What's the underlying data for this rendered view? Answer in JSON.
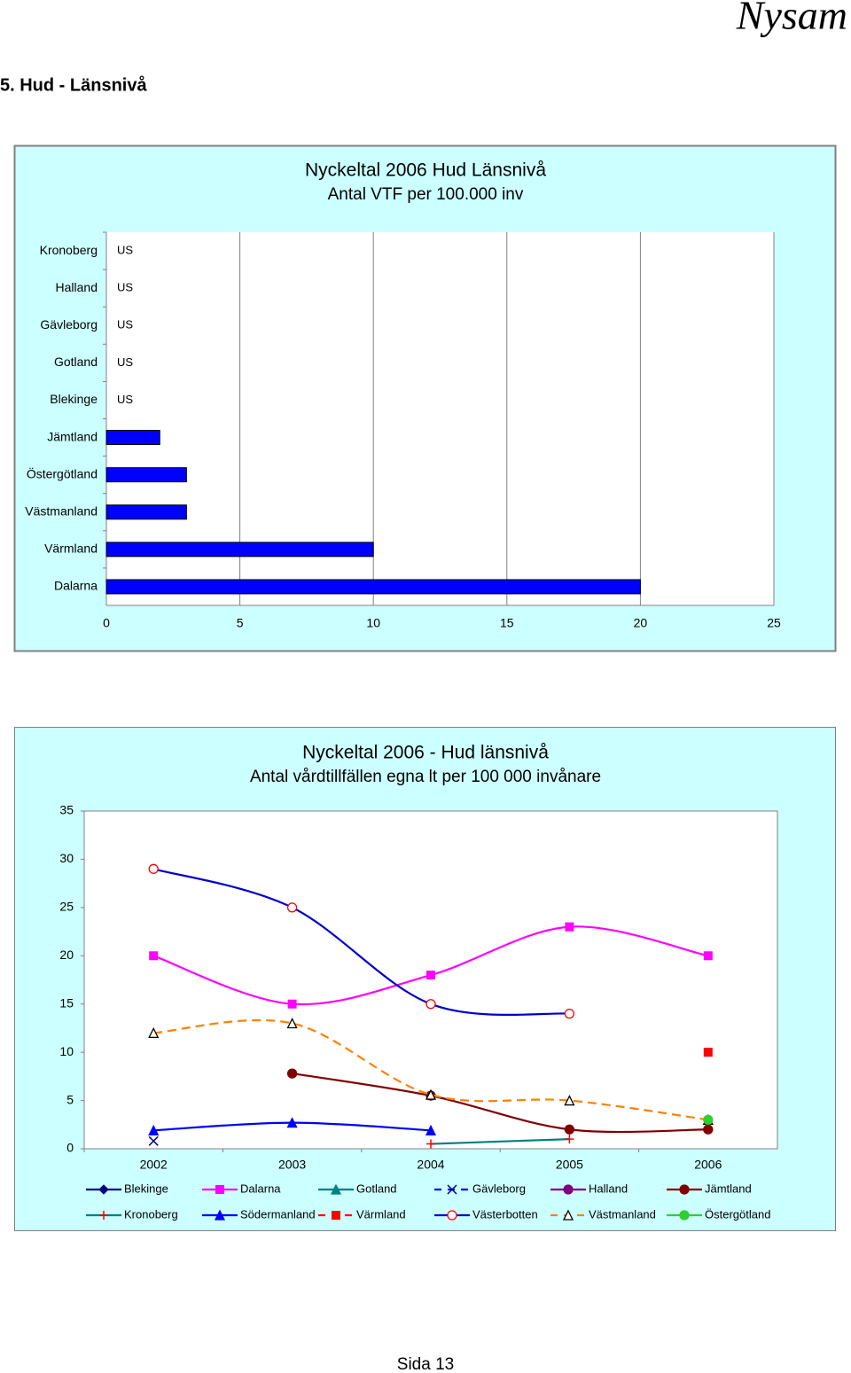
{
  "header": {
    "brand": "Nysam",
    "heading": "5.   Hud  -  Länsnivå"
  },
  "footer": "Sida   13",
  "chart_data": [
    {
      "type": "hbar",
      "title": "Nyckeltal 2006  Hud  Länsnivå",
      "subtitle": "Antal VTF per 100.000 inv",
      "categories": [
        "Kronoberg",
        "Halland",
        "Gävleborg",
        "Gotland",
        "Blekinge",
        "Jämtland",
        "Östergötland",
        "Västmanland",
        "Värmland",
        "Dalarna"
      ],
      "values": [
        null,
        null,
        null,
        null,
        null,
        2,
        3,
        3,
        10,
        20
      ],
      "value_labels": [
        "US",
        "US",
        "US",
        "US",
        "US",
        null,
        null,
        null,
        null,
        null
      ],
      "color": "#0000ff",
      "xlim": [
        0,
        25
      ],
      "xticks": [
        0,
        5,
        10,
        15,
        20,
        25
      ],
      "grid": true
    },
    {
      "type": "line",
      "title": "Nyckeltal 2006  -  Hud länsnivå",
      "subtitle": "Antal vårdtillfällen egna lt per 100 000 invånare",
      "categories": [
        "2002",
        "2003",
        "2004",
        "2005",
        "2006"
      ],
      "ylim": [
        0,
        35
      ],
      "yticks": [
        0,
        5,
        10,
        15,
        20,
        25,
        30,
        35
      ],
      "grid": false,
      "series": [
        {
          "name": "Blekinge",
          "color": "#000080",
          "marker": "diamond",
          "dash": false,
          "values": [
            null,
            null,
            null,
            null,
            null
          ]
        },
        {
          "name": "Dalarna",
          "color": "#ff00ff",
          "marker": "square",
          "dash": false,
          "values": [
            20,
            15,
            18,
            23,
            20
          ]
        },
        {
          "name": "Gotland",
          "color": "#008080",
          "marker": "triangle",
          "dash": false,
          "values": [
            null,
            null,
            null,
            null,
            null
          ]
        },
        {
          "name": "Gävleborg",
          "color": "#0000ff",
          "marker": "x",
          "marker_color": "#000080",
          "dash": true,
          "values": [
            0.8,
            null,
            null,
            null,
            null
          ]
        },
        {
          "name": "Halland",
          "color": "#800080",
          "marker": "circle",
          "dash": false,
          "values": [
            null,
            null,
            null,
            null,
            null
          ]
        },
        {
          "name": "Jämtland",
          "color": "#800000",
          "marker": "circle",
          "dash": false,
          "values": [
            null,
            7.8,
            5.5,
            2,
            2
          ]
        },
        {
          "name": "Kronoberg",
          "color": "#008080",
          "marker": "plus",
          "marker_color": "#ff0000",
          "dash": false,
          "values": [
            null,
            null,
            0.5,
            1,
            null
          ]
        },
        {
          "name": "Södermanland",
          "color": "#0000ff",
          "marker": "triangle",
          "dash": false,
          "values": [
            1.9,
            2.7,
            1.9,
            null,
            null
          ]
        },
        {
          "name": "Värmland",
          "color": "#ff0000",
          "marker": "square",
          "dash": true,
          "values": [
            null,
            null,
            null,
            null,
            10
          ]
        },
        {
          "name": "Västerbotten",
          "color": "#0000cc",
          "marker": "open-circle",
          "marker_color": "#ff0000",
          "dash": false,
          "values": [
            29,
            25,
            15,
            14,
            null
          ]
        },
        {
          "name": "Västmanland",
          "color": "#ff8000",
          "marker": "open-triangle",
          "marker_color": "#000000",
          "dash": true,
          "values": [
            12,
            13,
            5.6,
            5,
            3
          ]
        },
        {
          "name": "Östergötland",
          "color": "#33cc33",
          "marker": "circle",
          "dash": false,
          "values": [
            null,
            null,
            null,
            null,
            3
          ]
        }
      ]
    }
  ]
}
